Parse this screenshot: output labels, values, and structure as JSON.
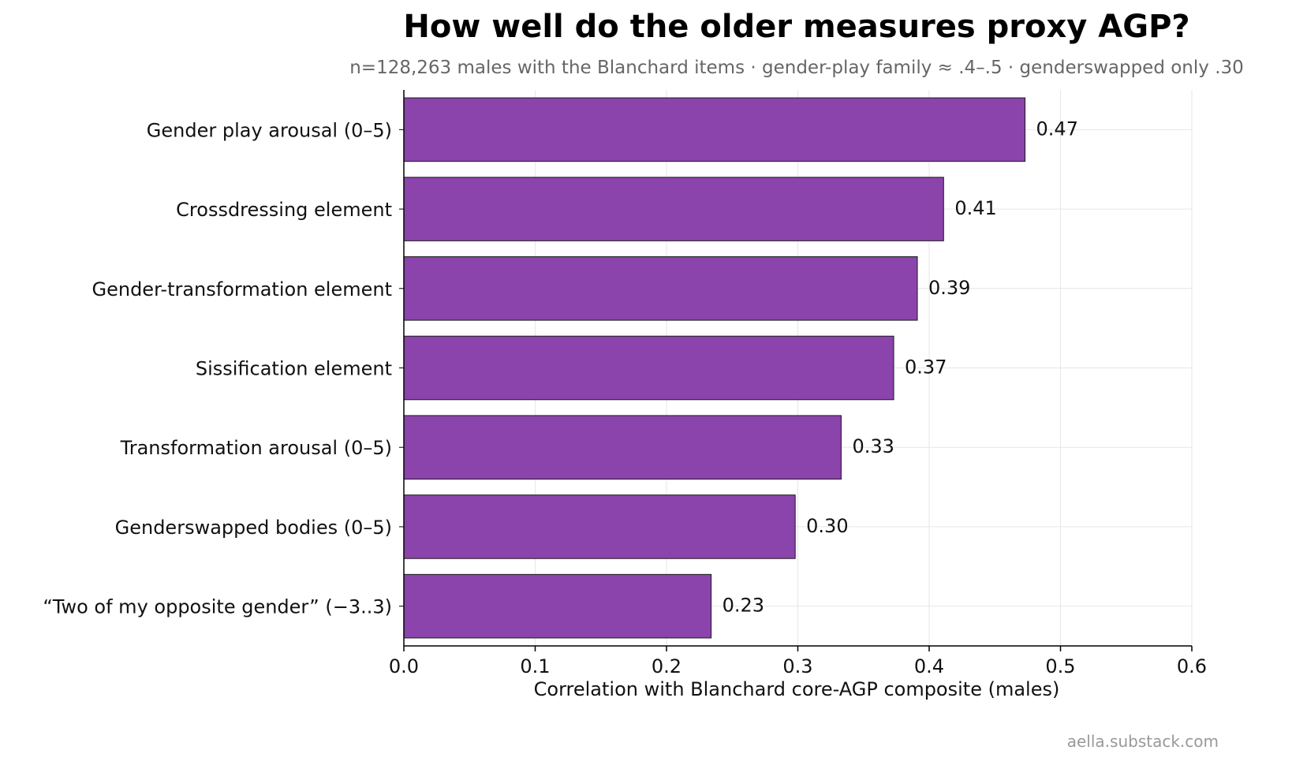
{
  "chart_data": {
    "type": "bar",
    "orientation": "horizontal",
    "title": "How well do the older measures proxy AGP?",
    "subtitle": "n=128,263 males with the Blanchard items · gender-play family ≈ .4–.5 · genderswapped only .30",
    "xlabel": "Correlation with Blanchard core-AGP composite (males)",
    "ylabel": "",
    "xlim": [
      0,
      0.6
    ],
    "xticks": [
      0.0,
      0.1,
      0.2,
      0.3,
      0.4,
      0.5,
      0.6
    ],
    "xtick_labels": [
      "0.0",
      "0.1",
      "0.2",
      "0.3",
      "0.4",
      "0.5",
      "0.6"
    ],
    "grid": true,
    "categories": [
      "Gender play arousal (0–5)",
      "Crossdressing element",
      "Gender-transformation element",
      "Sissification element",
      "Transformation arousal (0–5)",
      "Genderswapped bodies (0–5)",
      "“Two of my opposite gender” (−3..3)"
    ],
    "values": [
      0.473,
      0.411,
      0.391,
      0.373,
      0.333,
      0.298,
      0.234
    ],
    "value_labels": [
      "0.47",
      "0.41",
      "0.39",
      "0.37",
      "0.33",
      "0.30",
      "0.23"
    ],
    "bar_color": "#8b44ab",
    "bar_edge_color": "#1a1a1a"
  },
  "footer": {
    "credit": "aella.substack.com"
  }
}
